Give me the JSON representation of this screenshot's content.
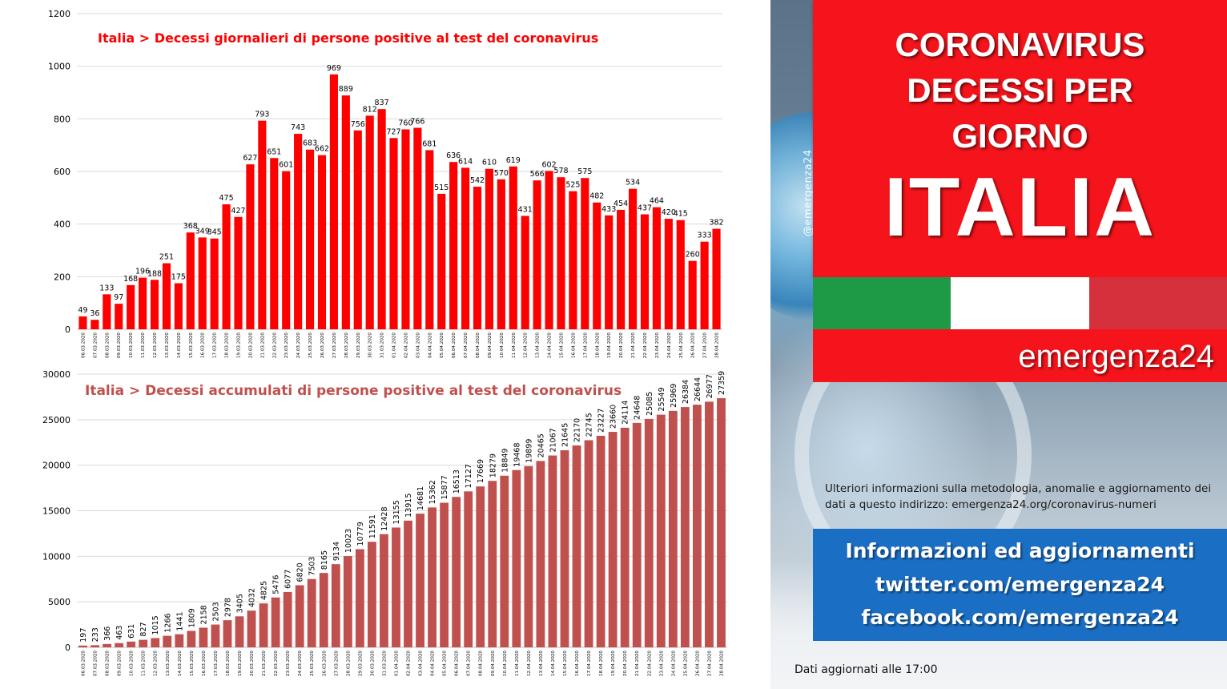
{
  "panel": {
    "handle": "@emergenza24",
    "headline": [
      "CORONAVIRUS",
      "DECESSI PER",
      "GIORNO"
    ],
    "country": "ITALIA",
    "brand": "emergenza24",
    "flag_colors": [
      "#1e9a46",
      "#ffffff",
      "#d6303c"
    ],
    "note": "Ulteriori informazioni sulla metodologia, anomalie e aggiornamento dei dati a questo indirizzo: emergenza24.org/coronavirus-numeri",
    "info_lines": [
      "Informazioni ed aggiornamenti",
      "twitter.com/emergenza24",
      "facebook.com/emergenza24"
    ],
    "updated": "Dati aggiornati alle 17:00",
    "accent_red": "#f5141b",
    "accent_blue": "#1a6fc4"
  },
  "chart_data": [
    {
      "type": "bar",
      "title": "Italia > Decessi giornalieri di persone positive al test del coronavirus",
      "color": "#ff0000",
      "ylim": [
        0,
        1200
      ],
      "yticks": [
        0,
        200,
        400,
        600,
        800,
        1000,
        1200
      ],
      "grid": true,
      "categories": [
        "06.03.2020",
        "07.03.2020",
        "08.03.2020",
        "09.03.2020",
        "10.03.2020",
        "11.03.2020",
        "12.03.2020",
        "13.03.2020",
        "14.03.2020",
        "15.03.2020",
        "16.03.2020",
        "17.03.2020",
        "18.03.2020",
        "19.03.2020",
        "20.03.2020",
        "21.03.2020",
        "22.03.2020",
        "23.03.2020",
        "24.03.2020",
        "25.03.2020",
        "26.03.2020",
        "27.03.2020",
        "28.03.2020",
        "29.03.2020",
        "30.03.2020",
        "31.03.2020",
        "01.04.2020",
        "02.04.2020",
        "03.04.2020",
        "04.04.2020",
        "05.04.2020",
        "06.04.2020",
        "07.04.2020",
        "08.04.2020",
        "09.04.2020",
        "10.04.2020",
        "11.04.2020",
        "12.04.2020",
        "13.04.2020",
        "14.04.2020",
        "15.04.2020",
        "16.04.2020",
        "17.04.2020",
        "18.04.2020",
        "19.04.2020",
        "20.04.2020",
        "21.04.2020",
        "22.04.2020",
        "23.04.2020",
        "24.04.2020",
        "25.04.2020",
        "26.04.2020",
        "27.04.2020",
        "28.04.2020"
      ],
      "values": [
        49,
        36,
        133,
        97,
        168,
        196,
        188,
        251,
        175,
        368,
        349,
        345,
        475,
        427,
        627,
        793,
        651,
        601,
        743,
        683,
        662,
        969,
        889,
        756,
        812,
        837,
        727,
        760,
        766,
        681,
        515,
        636,
        614,
        542,
        610,
        570,
        619,
        431,
        566,
        602,
        578,
        525,
        575,
        482,
        433,
        454,
        534,
        437,
        464,
        420,
        415,
        260,
        333,
        382
      ]
    },
    {
      "type": "bar",
      "title": "Italia > Decessi accumulati di persone positive al test del coronavirus",
      "color": "#c0504d",
      "ylim": [
        0,
        30000
      ],
      "yticks": [
        0,
        5000,
        10000,
        15000,
        20000,
        25000,
        30000
      ],
      "grid": true,
      "categories": [
        "06.03.2020",
        "07.03.2020",
        "08.03.2020",
        "09.03.2020",
        "10.03.2020",
        "11.03.2020",
        "12.03.2020",
        "13.03.2020",
        "14.03.2020",
        "15.03.2020",
        "16.03.2020",
        "17.03.2020",
        "18.03.2020",
        "19.03.2020",
        "20.03.2020",
        "21.03.2020",
        "22.03.2020",
        "23.03.2020",
        "24.03.2020",
        "25.03.2020",
        "26.03.2020",
        "27.03.2020",
        "28.03.2020",
        "29.03.2020",
        "30.03.2020",
        "31.03.2020",
        "01.04.2020",
        "02.04.2020",
        "03.04.2020",
        "04.04.2020",
        "05.04.2020",
        "06.04.2020",
        "07.04.2020",
        "08.04.2020",
        "09.04.2020",
        "10.04.2020",
        "11.04.2020",
        "12.04.2020",
        "13.04.2020",
        "14.04.2020",
        "15.04.2020",
        "16.04.2020",
        "17.04.2020",
        "18.04.2020",
        "19.04.2020",
        "20.04.2020",
        "21.04.2020",
        "22.04.2020",
        "23.04.2020",
        "24.04.2020",
        "25.04.2020",
        "26.04.2020",
        "27.04.2020",
        "28.04.2020"
      ],
      "values": [
        197,
        233,
        366,
        463,
        631,
        827,
        1015,
        1266,
        1441,
        1809,
        2158,
        2503,
        2978,
        3405,
        4032,
        4825,
        5476,
        6077,
        6820,
        7503,
        8165,
        9134,
        10023,
        10779,
        11591,
        12428,
        13155,
        13915,
        14681,
        15362,
        15877,
        16513,
        17127,
        17669,
        18279,
        18849,
        19468,
        19899,
        20465,
        21067,
        21645,
        22170,
        22745,
        23227,
        23660,
        24114,
        24648,
        25085,
        25549,
        25969,
        26384,
        26644,
        26977,
        27359
      ]
    }
  ]
}
